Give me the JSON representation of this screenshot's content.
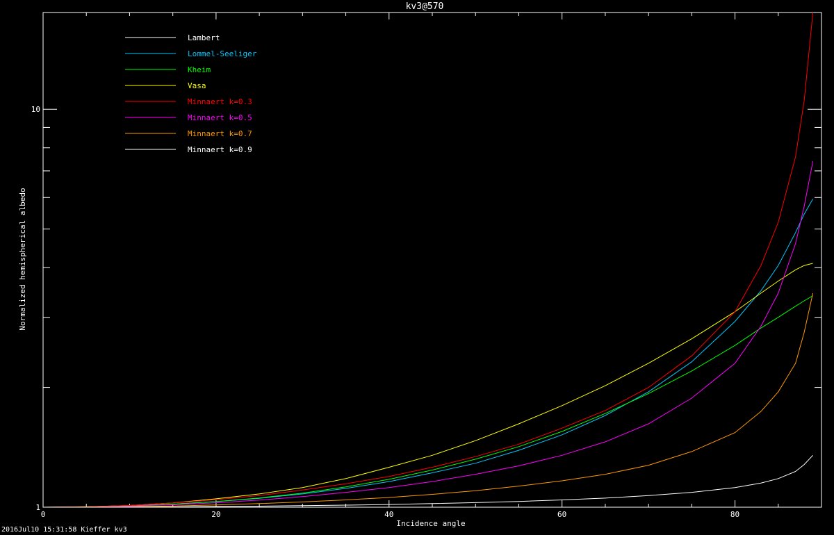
{
  "footer": "2016Jul10 15:31:58 Kieffer kv3",
  "chart_data": {
    "type": "line",
    "title": "kv3@570",
    "xlabel": "Incidence angle",
    "ylabel": "Normalized hemispherical albedo",
    "xlim": [
      0,
      90
    ],
    "ylim": [
      1,
      17.5
    ],
    "yscale": "log",
    "xticks": [
      0,
      20,
      40,
      60,
      80
    ],
    "yticks_major": [
      1,
      10
    ],
    "yticks_minor": [
      2,
      3,
      4,
      5,
      6,
      7,
      8,
      9
    ],
    "grid": false,
    "legend_position": "top-left",
    "background": "#000000",
    "axis_color": "#ffffff",
    "x": [
      5,
      10,
      15,
      20,
      25,
      30,
      35,
      40,
      45,
      50,
      55,
      60,
      65,
      70,
      75,
      80,
      83,
      85,
      87,
      88,
      89
    ],
    "series": [
      {
        "name": "Lambert",
        "color": "#ffffff",
        "values": [
          1,
          1,
          1,
          1,
          1,
          1,
          1,
          1,
          1,
          1,
          1,
          1,
          1,
          1,
          1,
          1,
          1,
          1,
          1,
          1,
          1
        ]
      },
      {
        "name": "Lommel-Seeliger",
        "color": "#00c8ff",
        "values": [
          1.002,
          1.008,
          1.018,
          1.033,
          1.053,
          1.08,
          1.115,
          1.16,
          1.22,
          1.29,
          1.39,
          1.52,
          1.7,
          1.95,
          2.32,
          2.93,
          3.5,
          4.05,
          4.9,
          5.45,
          5.95
        ]
      },
      {
        "name": "Kheim",
        "color": "#00ff00",
        "values": [
          1.002,
          1.008,
          1.018,
          1.033,
          1.055,
          1.085,
          1.125,
          1.175,
          1.24,
          1.32,
          1.42,
          1.55,
          1.72,
          1.93,
          2.2,
          2.55,
          2.82,
          3.0,
          3.2,
          3.3,
          3.4
        ]
      },
      {
        "name": "Vasa",
        "color": "#ffff00",
        "values": [
          1.003,
          1.01,
          1.025,
          1.05,
          1.08,
          1.12,
          1.18,
          1.26,
          1.35,
          1.47,
          1.62,
          1.8,
          2.02,
          2.3,
          2.65,
          3.1,
          3.45,
          3.7,
          3.95,
          4.05,
          4.1
        ]
      },
      {
        "name": "Minnaert k=0.3",
        "color": "#ff0000",
        "values": [
          1.002,
          1.01,
          1.025,
          1.045,
          1.07,
          1.105,
          1.145,
          1.195,
          1.26,
          1.34,
          1.44,
          1.58,
          1.75,
          2.0,
          2.4,
          3.1,
          4.05,
          5.2,
          7.6,
          10.5,
          17.5
        ]
      },
      {
        "name": "Minnaert k=0.5",
        "color": "#ff00ff",
        "values": [
          1.001,
          1.006,
          1.014,
          1.026,
          1.042,
          1.063,
          1.09,
          1.12,
          1.16,
          1.21,
          1.27,
          1.35,
          1.46,
          1.62,
          1.88,
          2.3,
          2.85,
          3.45,
          4.6,
          5.7,
          7.4
        ]
      },
      {
        "name": "Minnaert k=0.7",
        "color": "#ff9a00",
        "values": [
          1.001,
          1.003,
          1.007,
          1.013,
          1.021,
          1.031,
          1.043,
          1.058,
          1.077,
          1.1,
          1.13,
          1.165,
          1.21,
          1.275,
          1.38,
          1.54,
          1.74,
          1.95,
          2.3,
          2.75,
          3.45
        ]
      },
      {
        "name": "Minnaert k=0.9",
        "color": "#ffffff",
        "values": [
          1.0,
          1.001,
          1.002,
          1.004,
          1.006,
          1.009,
          1.012,
          1.016,
          1.021,
          1.027,
          1.034,
          1.043,
          1.054,
          1.07,
          1.09,
          1.12,
          1.15,
          1.18,
          1.23,
          1.28,
          1.35
        ]
      }
    ]
  }
}
